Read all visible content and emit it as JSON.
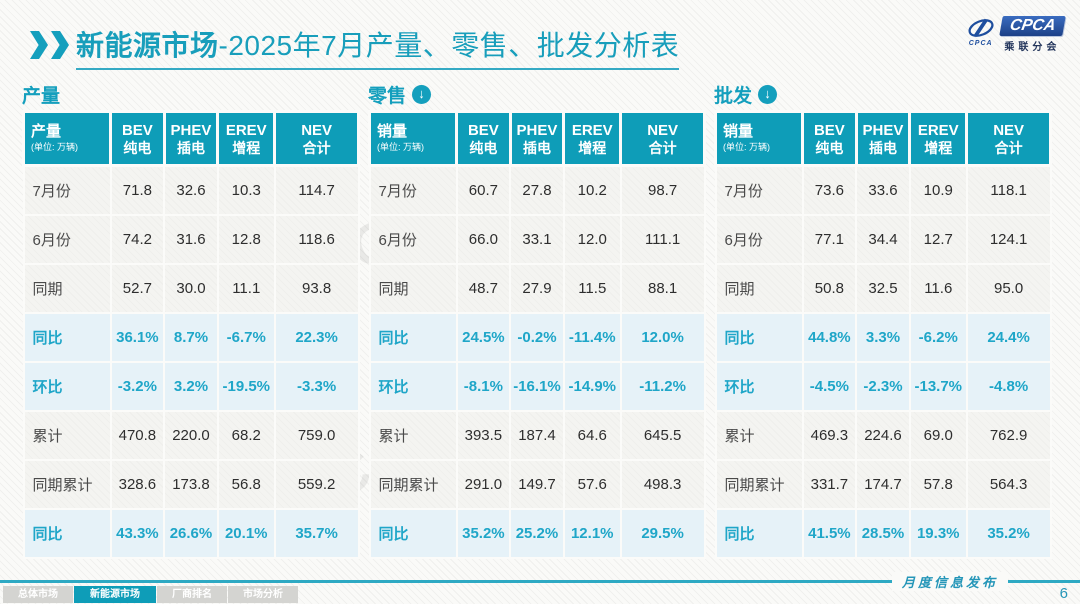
{
  "title": {
    "bold": "新能源市场",
    "rest": "-2025年7月产量、零售、批发分析表"
  },
  "logo": {
    "acronym": "CPCA",
    "cn_name": "乘联分会",
    "swoosh_small": "CPCA"
  },
  "unit": "(单位: 万辆)",
  "col_headers": [
    {
      "en": "BEV",
      "zh": "纯电"
    },
    {
      "en": "PHEV",
      "zh": "插电"
    },
    {
      "en": "EREV",
      "zh": "增程"
    },
    {
      "en": "NEV",
      "zh": "合计"
    }
  ],
  "tables": [
    {
      "section_label": "产量",
      "measure_label": "产量",
      "rows": [
        {
          "label": "7月份",
          "type": "normal",
          "cells": [
            "71.8",
            "32.6",
            "10.3",
            "114.7"
          ]
        },
        {
          "label": "6月份",
          "type": "normal",
          "cells": [
            "74.2",
            "31.6",
            "12.8",
            "118.6"
          ]
        },
        {
          "label": "同期",
          "type": "normal",
          "cells": [
            "52.7",
            "30.0",
            "11.1",
            "93.8"
          ]
        },
        {
          "label": "同比",
          "type": "highlight",
          "cells": [
            "36.1%",
            "8.7%",
            "-6.7%",
            "22.3%"
          ]
        },
        {
          "label": "环比",
          "type": "highlight",
          "cells": [
            "-3.2%",
            "3.2%",
            "-19.5%",
            "-3.3%"
          ]
        },
        {
          "label": "累计",
          "type": "normal",
          "cells": [
            "470.8",
            "220.0",
            "68.2",
            "759.0"
          ]
        },
        {
          "label": "同期累计",
          "type": "normal",
          "cells": [
            "328.6",
            "173.8",
            "56.8",
            "559.2"
          ]
        },
        {
          "label": "同比",
          "type": "highlight",
          "cells": [
            "43.3%",
            "26.6%",
            "20.1%",
            "35.7%"
          ]
        }
      ]
    },
    {
      "section_label": "零售",
      "measure_label": "销量",
      "rows": [
        {
          "label": "7月份",
          "type": "normal",
          "cells": [
            "60.7",
            "27.8",
            "10.2",
            "98.7"
          ]
        },
        {
          "label": "6月份",
          "type": "normal",
          "cells": [
            "66.0",
            "33.1",
            "12.0",
            "111.1"
          ]
        },
        {
          "label": "同期",
          "type": "normal",
          "cells": [
            "48.7",
            "27.9",
            "11.5",
            "88.1"
          ]
        },
        {
          "label": "同比",
          "type": "highlight",
          "cells": [
            "24.5%",
            "-0.2%",
            "-11.4%",
            "12.0%"
          ]
        },
        {
          "label": "环比",
          "type": "highlight",
          "cells": [
            "-8.1%",
            "-16.1%",
            "-14.9%",
            "-11.2%"
          ]
        },
        {
          "label": "累计",
          "type": "normal",
          "cells": [
            "393.5",
            "187.4",
            "64.6",
            "645.5"
          ]
        },
        {
          "label": "同期累计",
          "type": "normal",
          "cells": [
            "291.0",
            "149.7",
            "57.6",
            "498.3"
          ]
        },
        {
          "label": "同比",
          "type": "highlight",
          "cells": [
            "35.2%",
            "25.2%",
            "12.1%",
            "29.5%"
          ]
        }
      ]
    },
    {
      "section_label": "批发",
      "measure_label": "销量",
      "rows": [
        {
          "label": "7月份",
          "type": "normal",
          "cells": [
            "73.6",
            "33.6",
            "10.9",
            "118.1"
          ]
        },
        {
          "label": "6月份",
          "type": "normal",
          "cells": [
            "77.1",
            "34.4",
            "12.7",
            "124.1"
          ]
        },
        {
          "label": "同期",
          "type": "normal",
          "cells": [
            "50.8",
            "32.5",
            "11.6",
            "95.0"
          ]
        },
        {
          "label": "同比",
          "type": "highlight",
          "cells": [
            "44.8%",
            "3.3%",
            "-6.2%",
            "24.4%"
          ]
        },
        {
          "label": "环比",
          "type": "highlight",
          "cells": [
            "-4.5%",
            "-2.3%",
            "-13.7%",
            "-4.8%"
          ]
        },
        {
          "label": "累计",
          "type": "normal",
          "cells": [
            "469.3",
            "224.6",
            "69.0",
            "762.9"
          ]
        },
        {
          "label": "同期累计",
          "type": "normal",
          "cells": [
            "331.7",
            "174.7",
            "57.8",
            "564.3"
          ]
        },
        {
          "label": "同比",
          "type": "highlight",
          "cells": [
            "41.5%",
            "28.5%",
            "19.3%",
            "35.2%"
          ]
        }
      ]
    }
  ],
  "watermark": {
    "text": "CPCA",
    "subtext": "乘联分会"
  },
  "footer": {
    "tabs": [
      {
        "label": "总体市场"
      },
      {
        "label": "新能源市场"
      },
      {
        "label": "厂商排名"
      },
      {
        "label": "市场分析"
      }
    ],
    "active_tab": "新能源市场",
    "publication": "月度信息发布",
    "page": "6"
  },
  "colors": {
    "accent_teal": "#0E9DB8",
    "highlight_row_bg": "#E6F2F8",
    "highlight_text": "#1FA6C8",
    "logo_blue": "#1E4E9E"
  }
}
